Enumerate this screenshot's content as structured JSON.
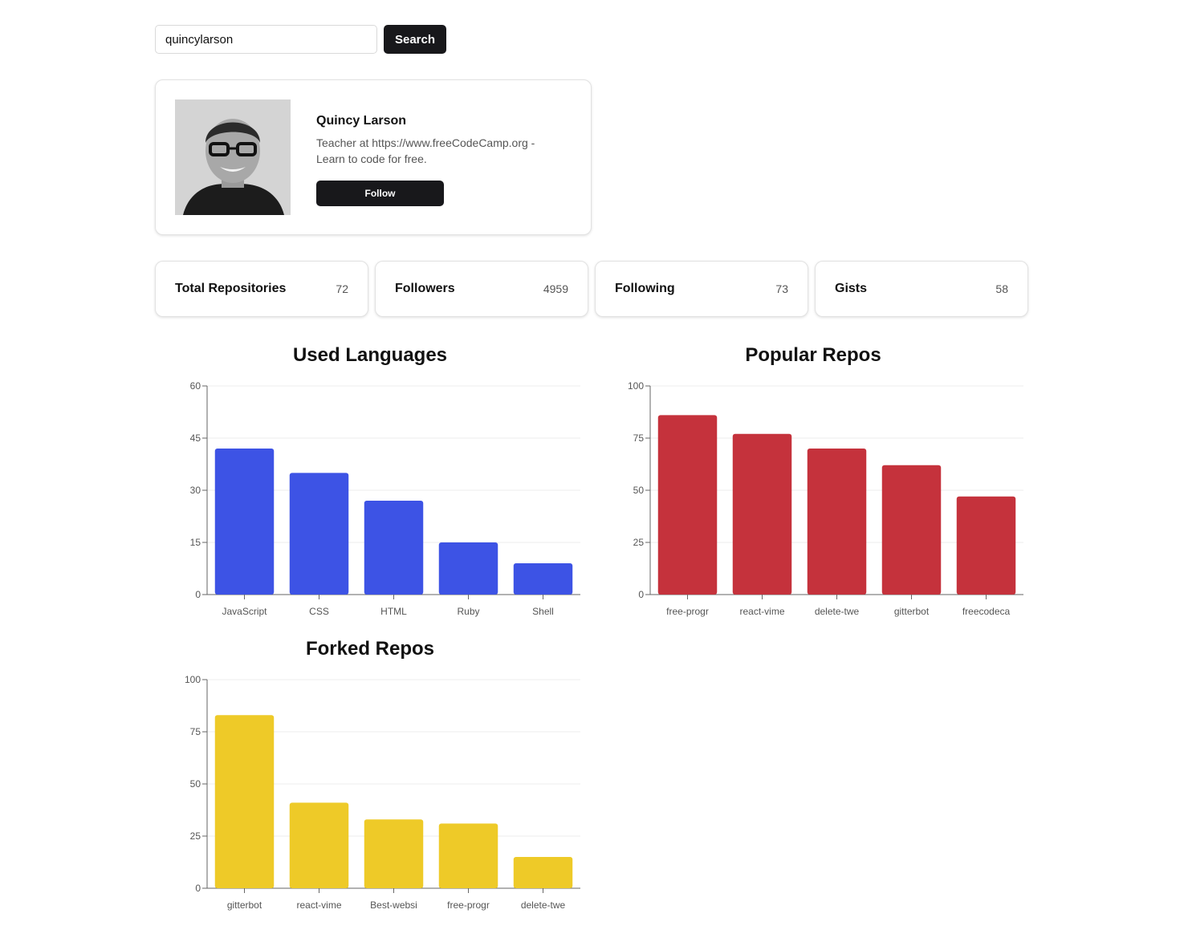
{
  "search": {
    "value": "quincylarson",
    "button_label": "Search"
  },
  "profile": {
    "name": "Quincy Larson",
    "bio": "Teacher at https://www.freeCodeCamp.org - Learn to code for free.",
    "follow_label": "Follow"
  },
  "stats": [
    {
      "label": "Total Repositories",
      "value": "72"
    },
    {
      "label": "Followers",
      "value": "4959"
    },
    {
      "label": "Following",
      "value": "73"
    },
    {
      "label": "Gists",
      "value": "58"
    }
  ],
  "charts": {
    "languages": {
      "title": "Used Languages"
    },
    "popular": {
      "title": "Popular Repos"
    },
    "forked": {
      "title": "Forked Repos"
    }
  },
  "chart_data": [
    {
      "id": "languages",
      "type": "bar",
      "title": "Used Languages",
      "categories": [
        "JavaScript",
        "CSS",
        "HTML",
        "Ruby",
        "Shell"
      ],
      "values": [
        42,
        35,
        27,
        15,
        9
      ],
      "ylim": [
        0,
        60
      ],
      "yticks": [
        0,
        15,
        30,
        45,
        60
      ],
      "color": "#3d53e5",
      "grid": true
    },
    {
      "id": "popular",
      "type": "bar",
      "title": "Popular Repos",
      "categories": [
        "free-progr",
        "react-vime",
        "delete-twe",
        "gitterbot",
        "freecodeca"
      ],
      "values": [
        86,
        77,
        70,
        62,
        47
      ],
      "ylim": [
        0,
        100
      ],
      "yticks": [
        0,
        25,
        50,
        75,
        100
      ],
      "color": "#c5323c",
      "grid": true
    },
    {
      "id": "forked",
      "type": "bar",
      "title": "Forked Repos",
      "categories": [
        "gitterbot",
        "react-vime",
        "Best-websi",
        "free-progr",
        "delete-twe"
      ],
      "values": [
        83,
        41,
        33,
        31,
        15
      ],
      "ylim": [
        0,
        100
      ],
      "yticks": [
        0,
        25,
        50,
        75,
        100
      ],
      "color": "#eeca28",
      "grid": true
    }
  ]
}
